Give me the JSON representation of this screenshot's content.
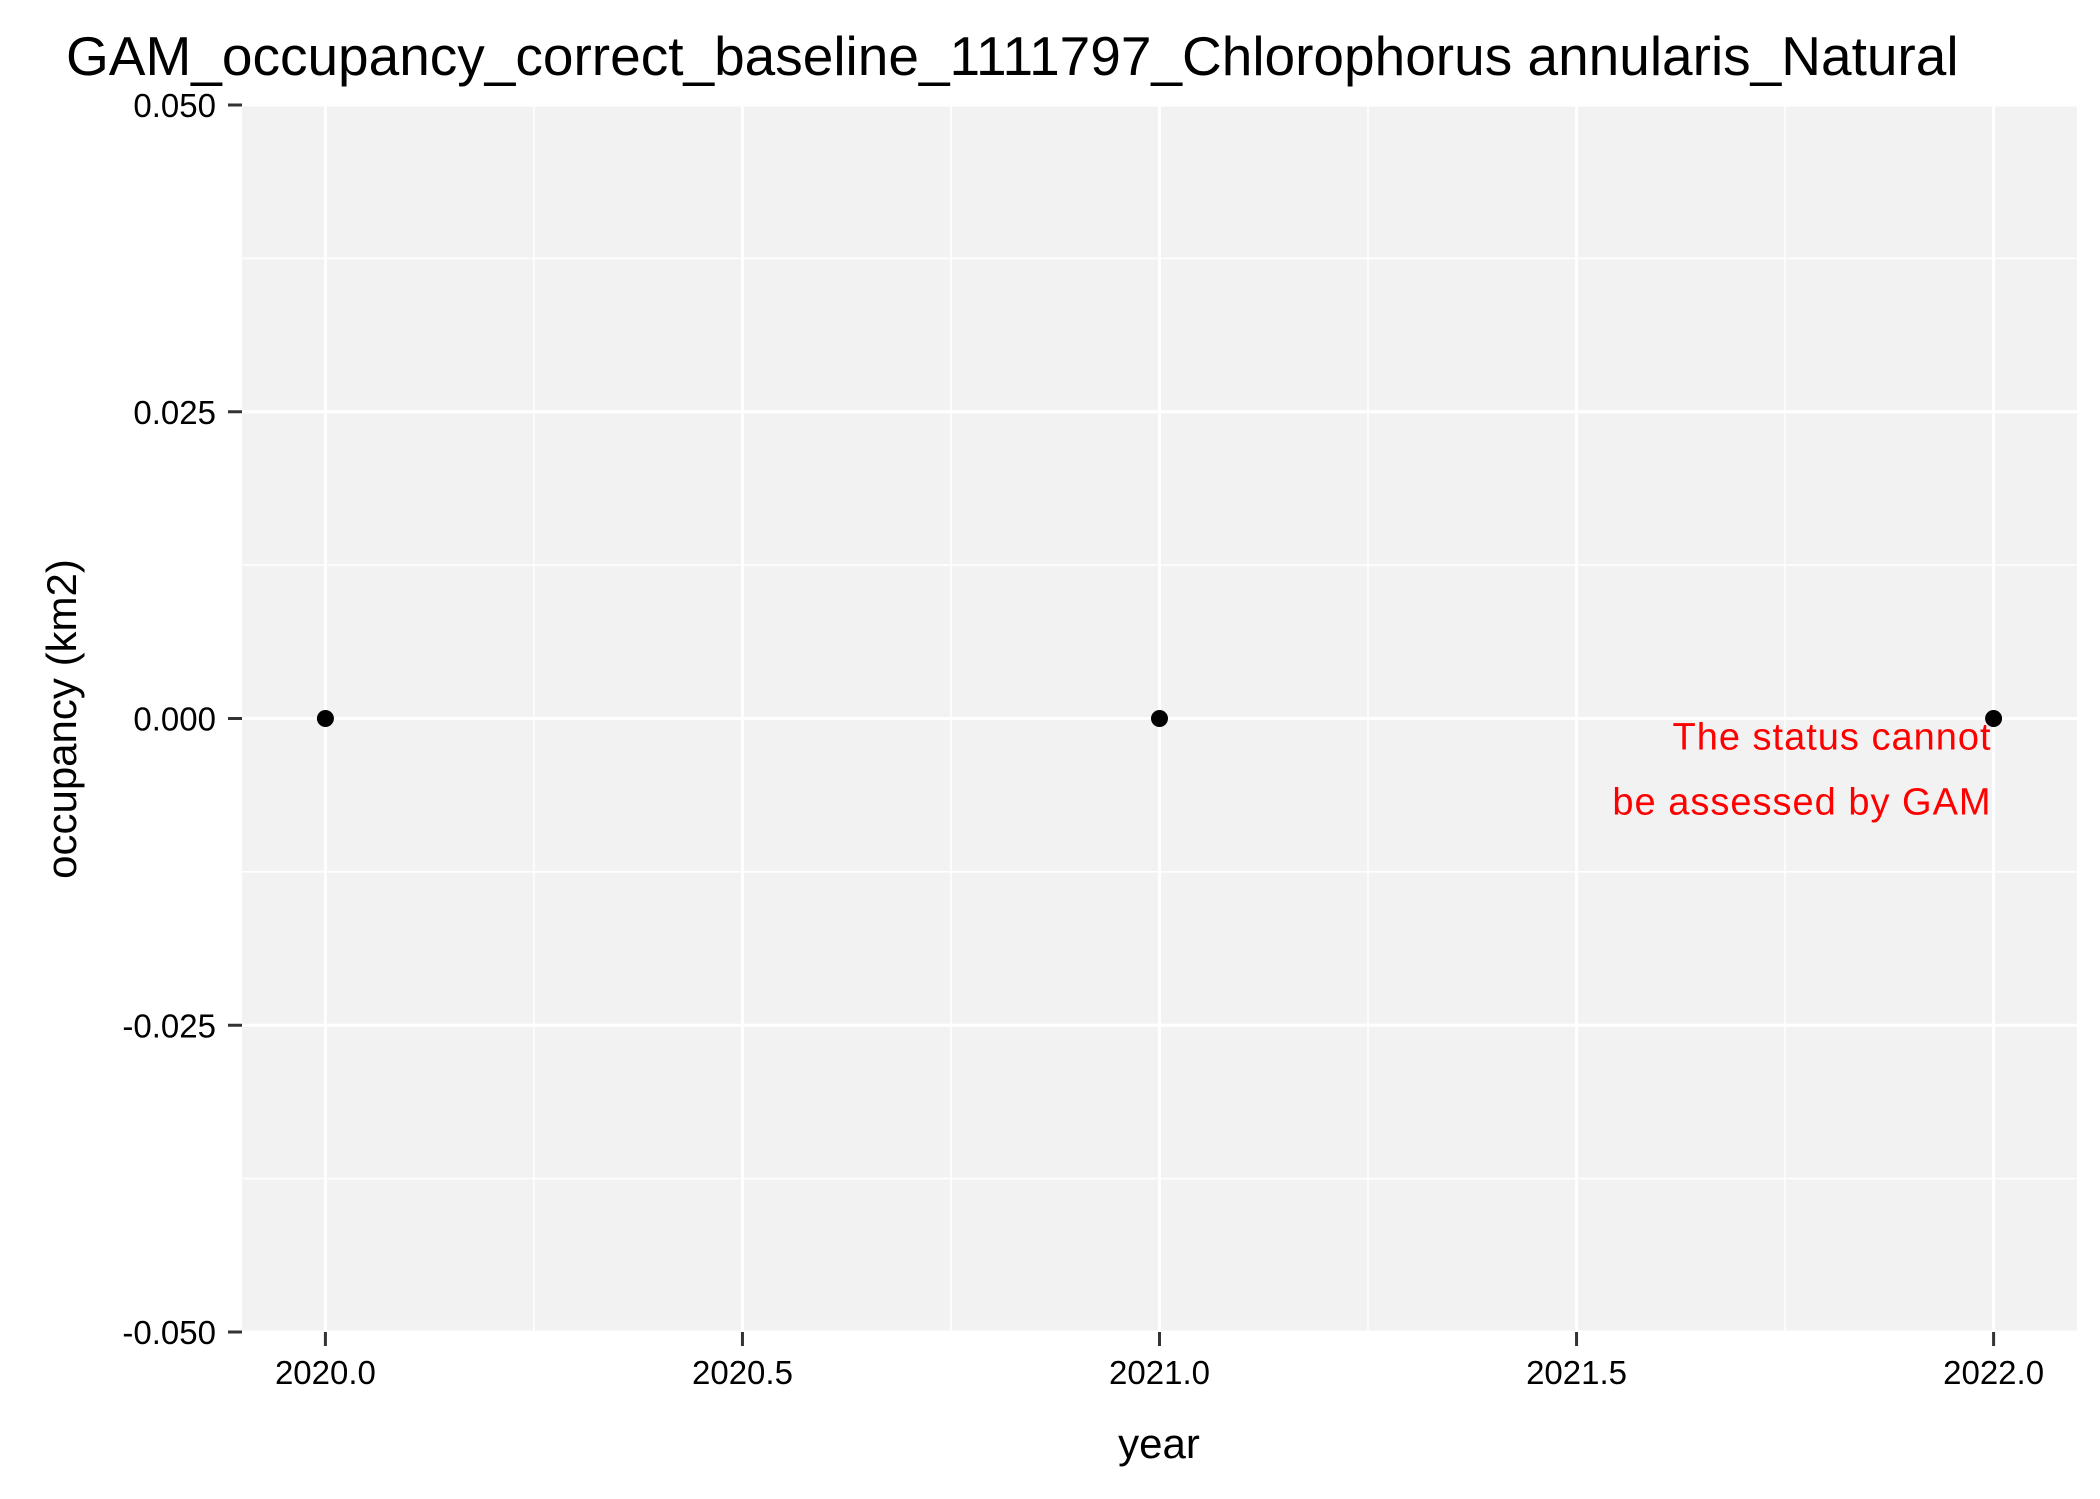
{
  "chart_data": {
    "type": "scatter",
    "title": "GAM_occupancy_correct_baseline_1111797_Chlorophorus annularis_Natural",
    "xlabel": "year",
    "ylabel": "occupancy (km2)",
    "xlim": [
      2019.9,
      2022.1
    ],
    "ylim": [
      -0.05,
      0.05
    ],
    "x_ticks": [
      2020.0,
      2020.5,
      2021.0,
      2021.5,
      2022.0
    ],
    "x_tick_labels": [
      "2020.0",
      "2020.5",
      "2021.0",
      "2021.5",
      "2022.0"
    ],
    "y_ticks": [
      -0.05,
      -0.025,
      0.0,
      0.025,
      0.05
    ],
    "y_tick_labels": [
      "-0.050",
      "-0.025",
      "0.000",
      "0.025",
      "0.050"
    ],
    "x_minor_ticks": [
      2020.25,
      2020.75,
      2021.25,
      2021.75
    ],
    "y_minor_ticks": [
      -0.0375,
      -0.0125,
      0.0125,
      0.0375
    ],
    "points": [
      {
        "x": 2020.0,
        "y": 0.0
      },
      {
        "x": 2021.0,
        "y": 0.0
      },
      {
        "x": 2022.0,
        "y": 0.0
      }
    ],
    "annotation": {
      "lines": [
        "The status cannot",
        "be assessed by GAM"
      ],
      "x": 2022.0,
      "y": 0.0,
      "color": "#ff0000"
    },
    "grid": true,
    "legend": "none",
    "colors": {
      "panel_background": "#f2f2f2",
      "grid": "#ffffff",
      "points": "#000000",
      "axis_text": "#000000"
    }
  }
}
